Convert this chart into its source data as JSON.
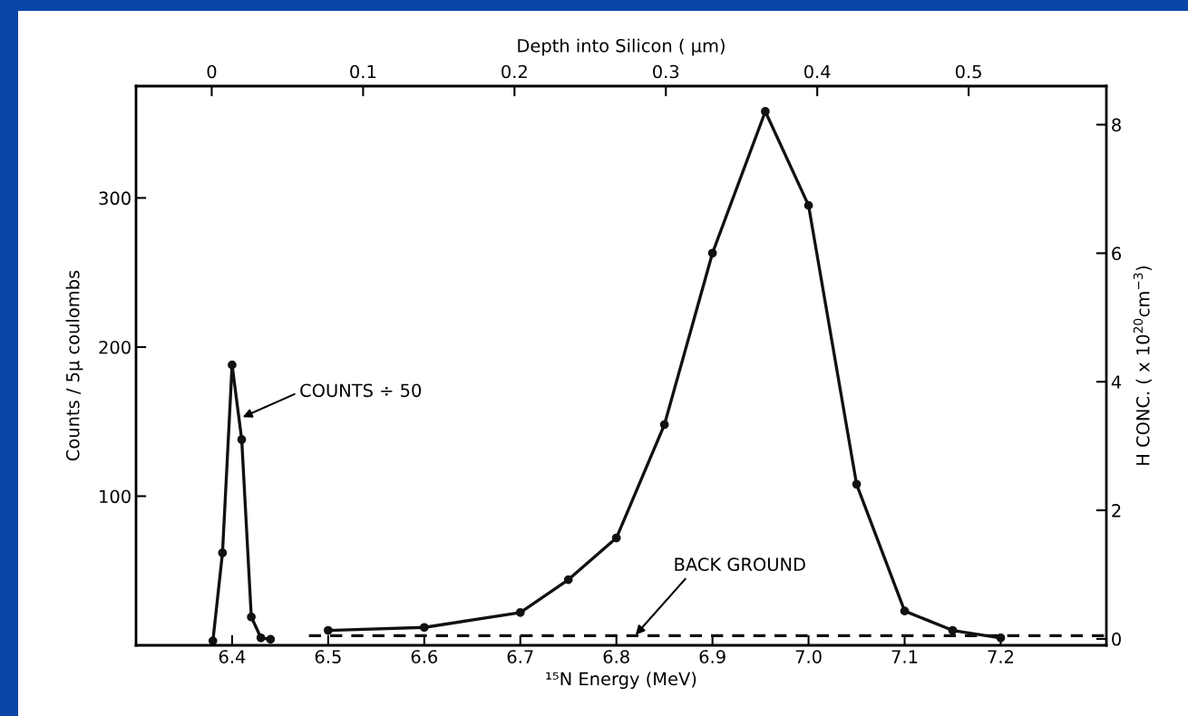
{
  "chart_data": {
    "type": "line",
    "xlabel": "¹⁵N Energy (MeV)",
    "ylabel": "Counts / 5μ coulombs",
    "y2label": "H CONC. ( x 10$^{20}$cm$^{−3}$)",
    "x2label": "Depth into Silicon ( μm)",
    "xlim": [
      6.3,
      7.31
    ],
    "xticks": [
      6.4,
      6.5,
      6.6,
      6.7,
      6.8,
      6.9,
      {
        "value": 7.0,
        "label": "7.0"
      },
      7.1,
      7.2
    ],
    "ylim": [
      0,
      375
    ],
    "yticks": [
      100,
      200,
      300
    ],
    "y2lim": [
      -0.1,
      8.6
    ],
    "y2ticks": [
      0,
      2,
      4,
      6,
      8
    ],
    "x2lim": [
      -0.05,
      0.591
    ],
    "x2ticks": [
      0,
      0.1,
      0.2,
      0.3,
      0.4,
      0.5
    ],
    "grid": false,
    "legend": false,
    "series": [
      {
        "color": "#111111",
        "marker": "circle",
        "line_style": "solid",
        "x": [
          6.38,
          6.39,
          6.4,
          6.41,
          6.42,
          6.43,
          6.44
        ],
        "values": [
          3,
          62,
          188,
          138,
          19,
          5,
          4
        ]
      },
      {
        "color": "#111111",
        "marker": "circle",
        "line_style": "solid",
        "x": [
          6.5,
          6.6,
          6.7,
          6.75,
          6.8,
          6.85,
          6.9,
          6.955,
          7.0,
          7.05,
          7.1,
          7.15,
          7.2
        ],
        "values": [
          10,
          12,
          22,
          44,
          72,
          148,
          263,
          358,
          295,
          108,
          23,
          10,
          5
        ]
      },
      {
        "color": "#111111",
        "marker": "none",
        "line_style": "dashed",
        "x": [
          6.48,
          7.31
        ],
        "values": [
          6.5,
          6.5
        ]
      }
    ],
    "annotations": [
      {
        "text": "COUNTS ÷ 50",
        "x": 6.411,
        "y": 153
      },
      {
        "text": "BACK GROUND",
        "x": 6.82,
        "y": 7
      }
    ]
  }
}
